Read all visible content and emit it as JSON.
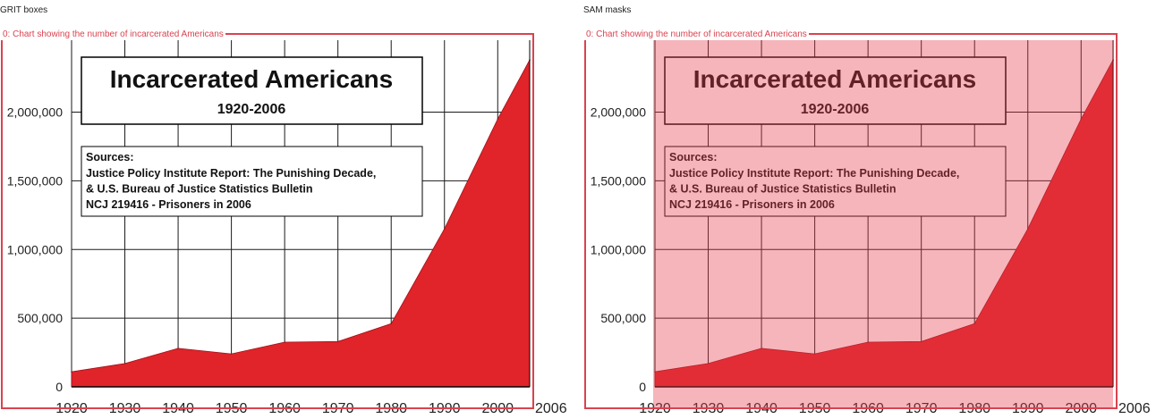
{
  "panels": {
    "left": {
      "title": "GRIT boxes"
    },
    "right": {
      "title": "SAM masks"
    }
  },
  "detection": {
    "label": "0: Chart showing the number of incarcerated Americans"
  },
  "colors": {
    "annotation": "#d9434f",
    "fill": "#e0242a",
    "grid": "#1a1a1a"
  },
  "chart_data": {
    "type": "area",
    "title": "Incarcerated Americans",
    "subtitle": "1920-2006",
    "sources": {
      "heading": "Sources:",
      "lines": [
        "Justice Policy Institute Report: The Punishing Decade,",
        "& U.S. Bureau of Justice Statistics Bulletin",
        "NCJ 219416 - Prisoners in 2006"
      ]
    },
    "x": [
      1920,
      1930,
      1940,
      1950,
      1960,
      1970,
      1980,
      1990,
      2000,
      2006
    ],
    "series": [
      {
        "values": [
          110000,
          170000,
          280000,
          240000,
          325000,
          330000,
          460000,
          1150000,
          1950000,
          2380000
        ]
      }
    ],
    "xticks": [
      1920,
      1930,
      1940,
      1950,
      1960,
      1970,
      1980,
      1990,
      2000
    ],
    "xtick_labels": [
      "1920",
      "1930",
      "1940",
      "1950",
      "1960",
      "1970",
      "1980",
      "1990",
      "2000"
    ],
    "x_end_label": "2006",
    "yticks": [
      0,
      500000,
      1000000,
      1500000,
      2000000
    ],
    "ytick_labels": [
      "0",
      "500,000",
      "1,000,000",
      "1,500,000",
      "2,000,000"
    ],
    "xlim": [
      1920,
      2006
    ],
    "ylim": [
      0,
      2400000
    ],
    "grid": true
  }
}
